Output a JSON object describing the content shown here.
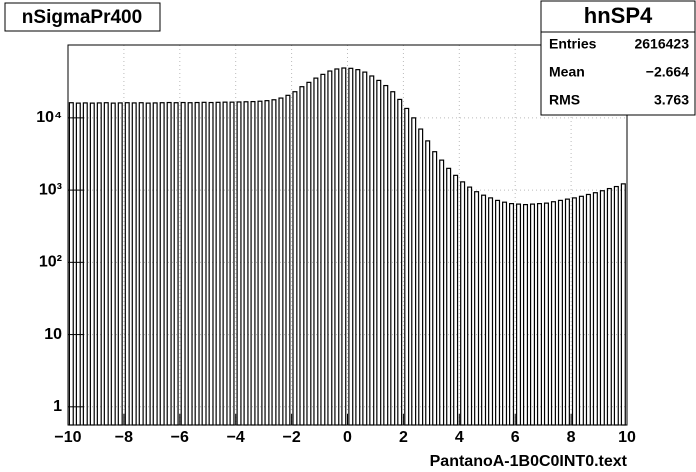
{
  "chart_data": {
    "type": "histogram-bars",
    "title": "nSigmaPr400",
    "x_label": "PantanoA-1B0C0INT0.text",
    "bins_start": -10,
    "bin_width": 0.25,
    "values": [
      16200,
      16000,
      16100,
      16000,
      16100,
      16200,
      16000,
      16100,
      16200,
      16100,
      16200,
      16000,
      16100,
      16200,
      16300,
      16200,
      16300,
      16200,
      16300,
      16400,
      16300,
      16400,
      16500,
      16500,
      16600,
      16700,
      16800,
      17000,
      17300,
      17800,
      18800,
      20500,
      23000,
      27000,
      31000,
      35500,
      40000,
      44500,
      47500,
      49000,
      48500,
      46500,
      43000,
      38000,
      33000,
      28000,
      23000,
      18000,
      13500,
      10000,
      7000,
      4800,
      3400,
      2600,
      2000,
      1600,
      1300,
      1100,
      950,
      850,
      780,
      720,
      680,
      650,
      640,
      630,
      640,
      650,
      660,
      690,
      720,
      750,
      780,
      820,
      870,
      920,
      980,
      1050,
      1120,
      1220
    ],
    "color": "#000000",
    "log_y": true,
    "grid": true,
    "xlim": [
      -10,
      10
    ],
    "xticks": [
      {
        "value": -10,
        "label": "−10"
      },
      {
        "value": -8,
        "label": "−8"
      },
      {
        "value": -6,
        "label": "−6"
      },
      {
        "value": -4,
        "label": "−4"
      },
      {
        "value": -2,
        "label": "−2"
      },
      0,
      2,
      4,
      6,
      8,
      10
    ],
    "ylim": [
      0.56,
      102000
    ],
    "yticks": [
      1,
      10,
      {
        "value": 100,
        "label": "10²"
      },
      {
        "value": 1000,
        "label": "10³"
      },
      {
        "value": 10000,
        "label": "10⁴"
      }
    ],
    "stats": {
      "title": "hnSP4",
      "rows": [
        [
          "Entries",
          "2616423"
        ],
        [
          "Mean",
          "−2.664"
        ],
        [
          "RMS",
          "3.763"
        ]
      ]
    }
  }
}
